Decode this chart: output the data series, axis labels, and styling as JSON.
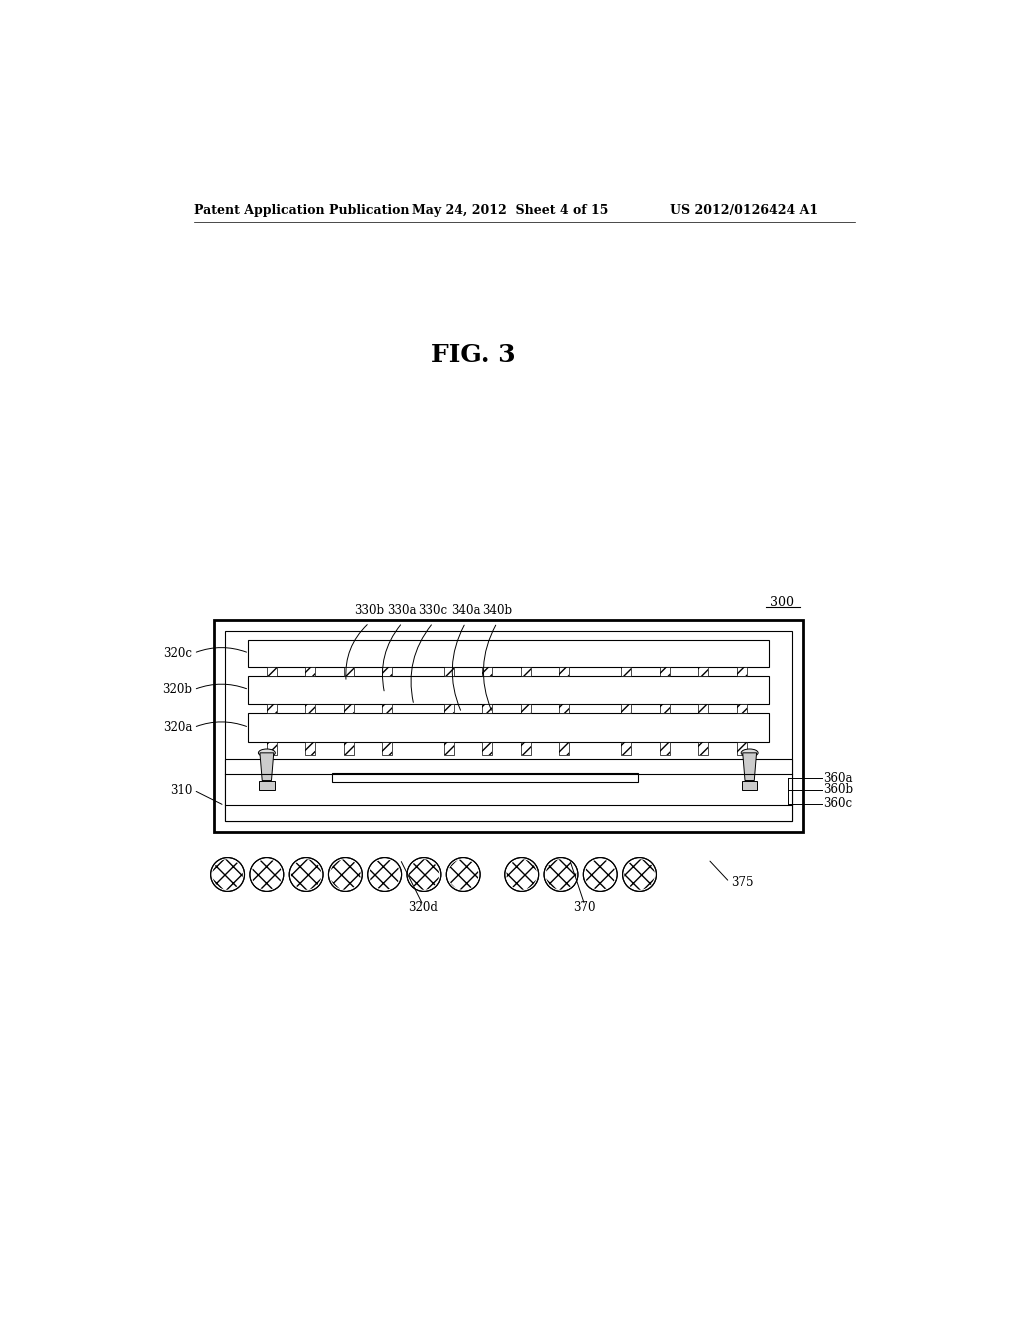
{
  "background_color": "#ffffff",
  "line_color": "#000000",
  "header_left": "Patent Application Publication",
  "header_mid": "May 24, 2012  Sheet 4 of 15",
  "header_right": "US 2012/0126424 A1",
  "fig_title": "FIG. 3",
  "ref_300": "300",
  "ref_310": "310",
  "ref_320a": "320a",
  "ref_320b": "320b",
  "ref_320c": "320c",
  "ref_320d": "320d",
  "ref_330a": "330a",
  "ref_330b": "330b",
  "ref_330c": "330c",
  "ref_340a": "340a",
  "ref_340b": "340b",
  "ref_360a": "360a",
  "ref_360b": "360b",
  "ref_360c": "360c",
  "ref_370": "370",
  "ref_375": "375"
}
